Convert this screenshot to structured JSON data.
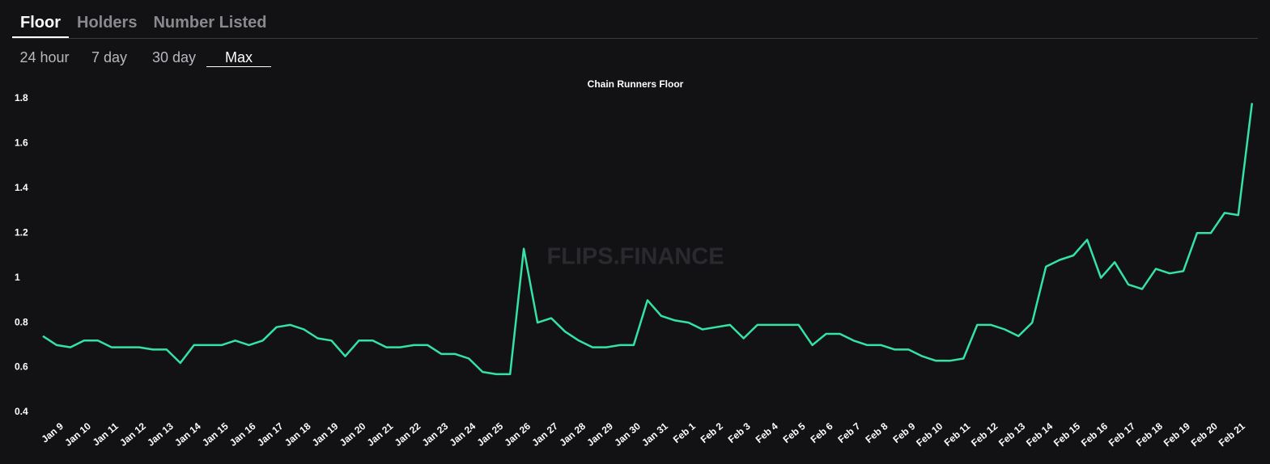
{
  "tabs": [
    "Floor",
    "Holders",
    "Number Listed"
  ],
  "ranges": [
    "24 hour",
    "7 day",
    "30 day",
    "Max"
  ],
  "chart_data": {
    "type": "line",
    "title": "Chain Runners Floor",
    "watermark": "FLIPS.FINANCE",
    "categories": [
      null,
      "Jan 9",
      null,
      "Jan 10",
      null,
      "Jan 11",
      null,
      "Jan 12",
      null,
      "Jan 13",
      null,
      "Jan 14",
      null,
      "Jan 15",
      null,
      "Jan 16",
      null,
      "Jan 17",
      null,
      "Jan 18",
      null,
      "Jan 19",
      null,
      "Jan 20",
      null,
      "Jan 21",
      null,
      "Jan 22",
      null,
      "Jan 23",
      null,
      "Jan 24",
      null,
      "Jan 25",
      null,
      "Jan 26",
      null,
      "Jan 27",
      null,
      "Jan 28",
      null,
      "Jan 29",
      null,
      "Jan 30",
      null,
      "Jan 31",
      null,
      "Feb 1",
      null,
      "Feb 2",
      null,
      "Feb 3",
      null,
      "Feb 4",
      null,
      "Feb 5",
      null,
      "Feb 6",
      null,
      "Feb 7",
      null,
      "Feb 8",
      null,
      "Feb 9",
      null,
      "Feb 10",
      null,
      "Feb 11",
      null,
      "Feb 12",
      null,
      "Feb 13",
      null,
      "Feb 14",
      null,
      "Feb 15",
      null,
      "Feb 16",
      null,
      "Feb 17",
      null,
      "Feb 18",
      null,
      "Feb 19",
      null,
      "Feb 20",
      null,
      "Feb 21",
      null
    ],
    "series": [
      {
        "name": "Floor",
        "color": "#34e3a4",
        "values": [
          0.74,
          0.7,
          0.69,
          0.72,
          0.72,
          0.69,
          0.69,
          0.69,
          0.68,
          0.68,
          0.62,
          0.7,
          0.7,
          0.7,
          0.72,
          0.7,
          0.72,
          0.78,
          0.79,
          0.77,
          0.73,
          0.72,
          0.65,
          0.72,
          0.72,
          0.69,
          0.69,
          0.7,
          0.7,
          0.66,
          0.66,
          0.64,
          0.58,
          0.57,
          0.57,
          1.13,
          0.8,
          0.82,
          0.76,
          0.72,
          0.69,
          0.69,
          0.7,
          0.7,
          0.9,
          0.83,
          0.81,
          0.8,
          0.77,
          0.78,
          0.79,
          0.73,
          0.79,
          0.79,
          0.79,
          0.79,
          0.7,
          0.75,
          0.75,
          0.72,
          0.7,
          0.7,
          0.68,
          0.68,
          0.65,
          0.63,
          0.63,
          0.64,
          0.79,
          0.79,
          0.77,
          0.74,
          0.8,
          1.05,
          1.08,
          1.1,
          1.17,
          1.0,
          1.07,
          0.97,
          0.95,
          1.04,
          1.02,
          1.03,
          1.2,
          1.2,
          1.29,
          1.28,
          1.78
        ]
      }
    ],
    "ylim": [
      0.4,
      1.8
    ],
    "yticks": [
      0.4,
      0.6,
      0.8,
      1.0,
      1.2,
      1.4,
      1.6,
      1.8
    ],
    "grid": false
  }
}
